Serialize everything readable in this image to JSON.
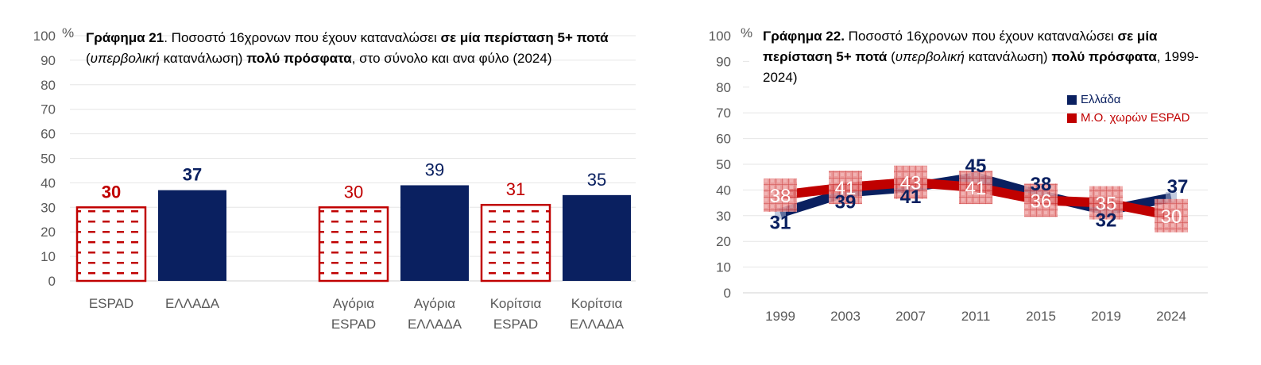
{
  "colors": {
    "greece": "#0a2060",
    "espad": "#c00000",
    "tick": "#595959",
    "grid": "#e6e6e6"
  },
  "chart_data": [
    {
      "type": "bar",
      "title_parts": [
        {
          "text": "Γράφημα 21",
          "style": "bold"
        },
        {
          "text": ". Ποσοστό 16χρονων που έχουν καταναλώσει ",
          "style": "normal"
        },
        {
          "text": "σε μία περίσταση  5+ ποτά",
          "style": "bold"
        },
        {
          "text": " (",
          "style": "normal"
        },
        {
          "text": "υπερβολική",
          "style": "italic"
        },
        {
          "text": " κατανάλωση) ",
          "style": "normal"
        },
        {
          "text": "πολύ πρόσφατα",
          "style": "bold"
        },
        {
          "text": ", στο σύνολο και ανα φύλο (2024)",
          "style": "normal"
        }
      ],
      "y_unit": "%",
      "ylim": [
        0,
        100
      ],
      "yticks": [
        0,
        10,
        20,
        30,
        40,
        50,
        60,
        70,
        80,
        90,
        100
      ],
      "grid": true,
      "categories": [
        {
          "line1": "ESPAD",
          "line2": ""
        },
        {
          "line1": "ΕΛΛΑΔΑ",
          "line2": ""
        },
        {
          "line1": "Αγόρια",
          "line2": "ESPAD"
        },
        {
          "line1": "Αγόρια",
          "line2": "ΕΛΛΑΔΑ"
        },
        {
          "line1": "Κορίτσια",
          "line2": "ESPAD"
        },
        {
          "line1": "Κορίτσια",
          "line2": "ΕΛΛΑΔΑ"
        }
      ],
      "values": [
        30,
        37,
        30,
        39,
        31,
        35
      ],
      "series_of_bar": [
        "espad",
        "greece",
        "espad",
        "greece",
        "espad",
        "greece"
      ],
      "label_bold": [
        true,
        true,
        false,
        false,
        false,
        false
      ]
    },
    {
      "type": "line",
      "title_parts": [
        {
          "text": "Γράφημα 22.",
          "style": "bold"
        },
        {
          "text": " Ποσοστό 16χρονων που έχουν καταναλώσει ",
          "style": "normal"
        },
        {
          "text": "σε μία περίσταση  5+ ποτά",
          "style": "bold"
        },
        {
          "text": " (",
          "style": "normal"
        },
        {
          "text": "υπερβολική",
          "style": "italic"
        },
        {
          "text": " κατανάλωση) ",
          "style": "normal"
        },
        {
          "text": "πολύ πρόσφατα",
          "style": "bold"
        },
        {
          "text": ", 1999-2024)",
          "style": "normal"
        }
      ],
      "y_unit": "%",
      "ylim": [
        0,
        100
      ],
      "yticks": [
        0,
        10,
        20,
        30,
        40,
        50,
        60,
        70,
        80,
        90,
        100
      ],
      "grid": true,
      "x": [
        "1999",
        "2003",
        "2007",
        "2011",
        "2015",
        "2019",
        "2024"
      ],
      "legend_position": "top-right",
      "series": [
        {
          "name": "Ελλάδα",
          "key": "greece",
          "values": [
            31,
            39,
            41,
            45,
            38,
            32,
            37
          ]
        },
        {
          "name": "Μ.Ο. χωρών ESPAD",
          "key": "espad",
          "values": [
            38,
            41,
            43,
            41,
            36,
            35,
            30
          ]
        }
      ]
    }
  ]
}
